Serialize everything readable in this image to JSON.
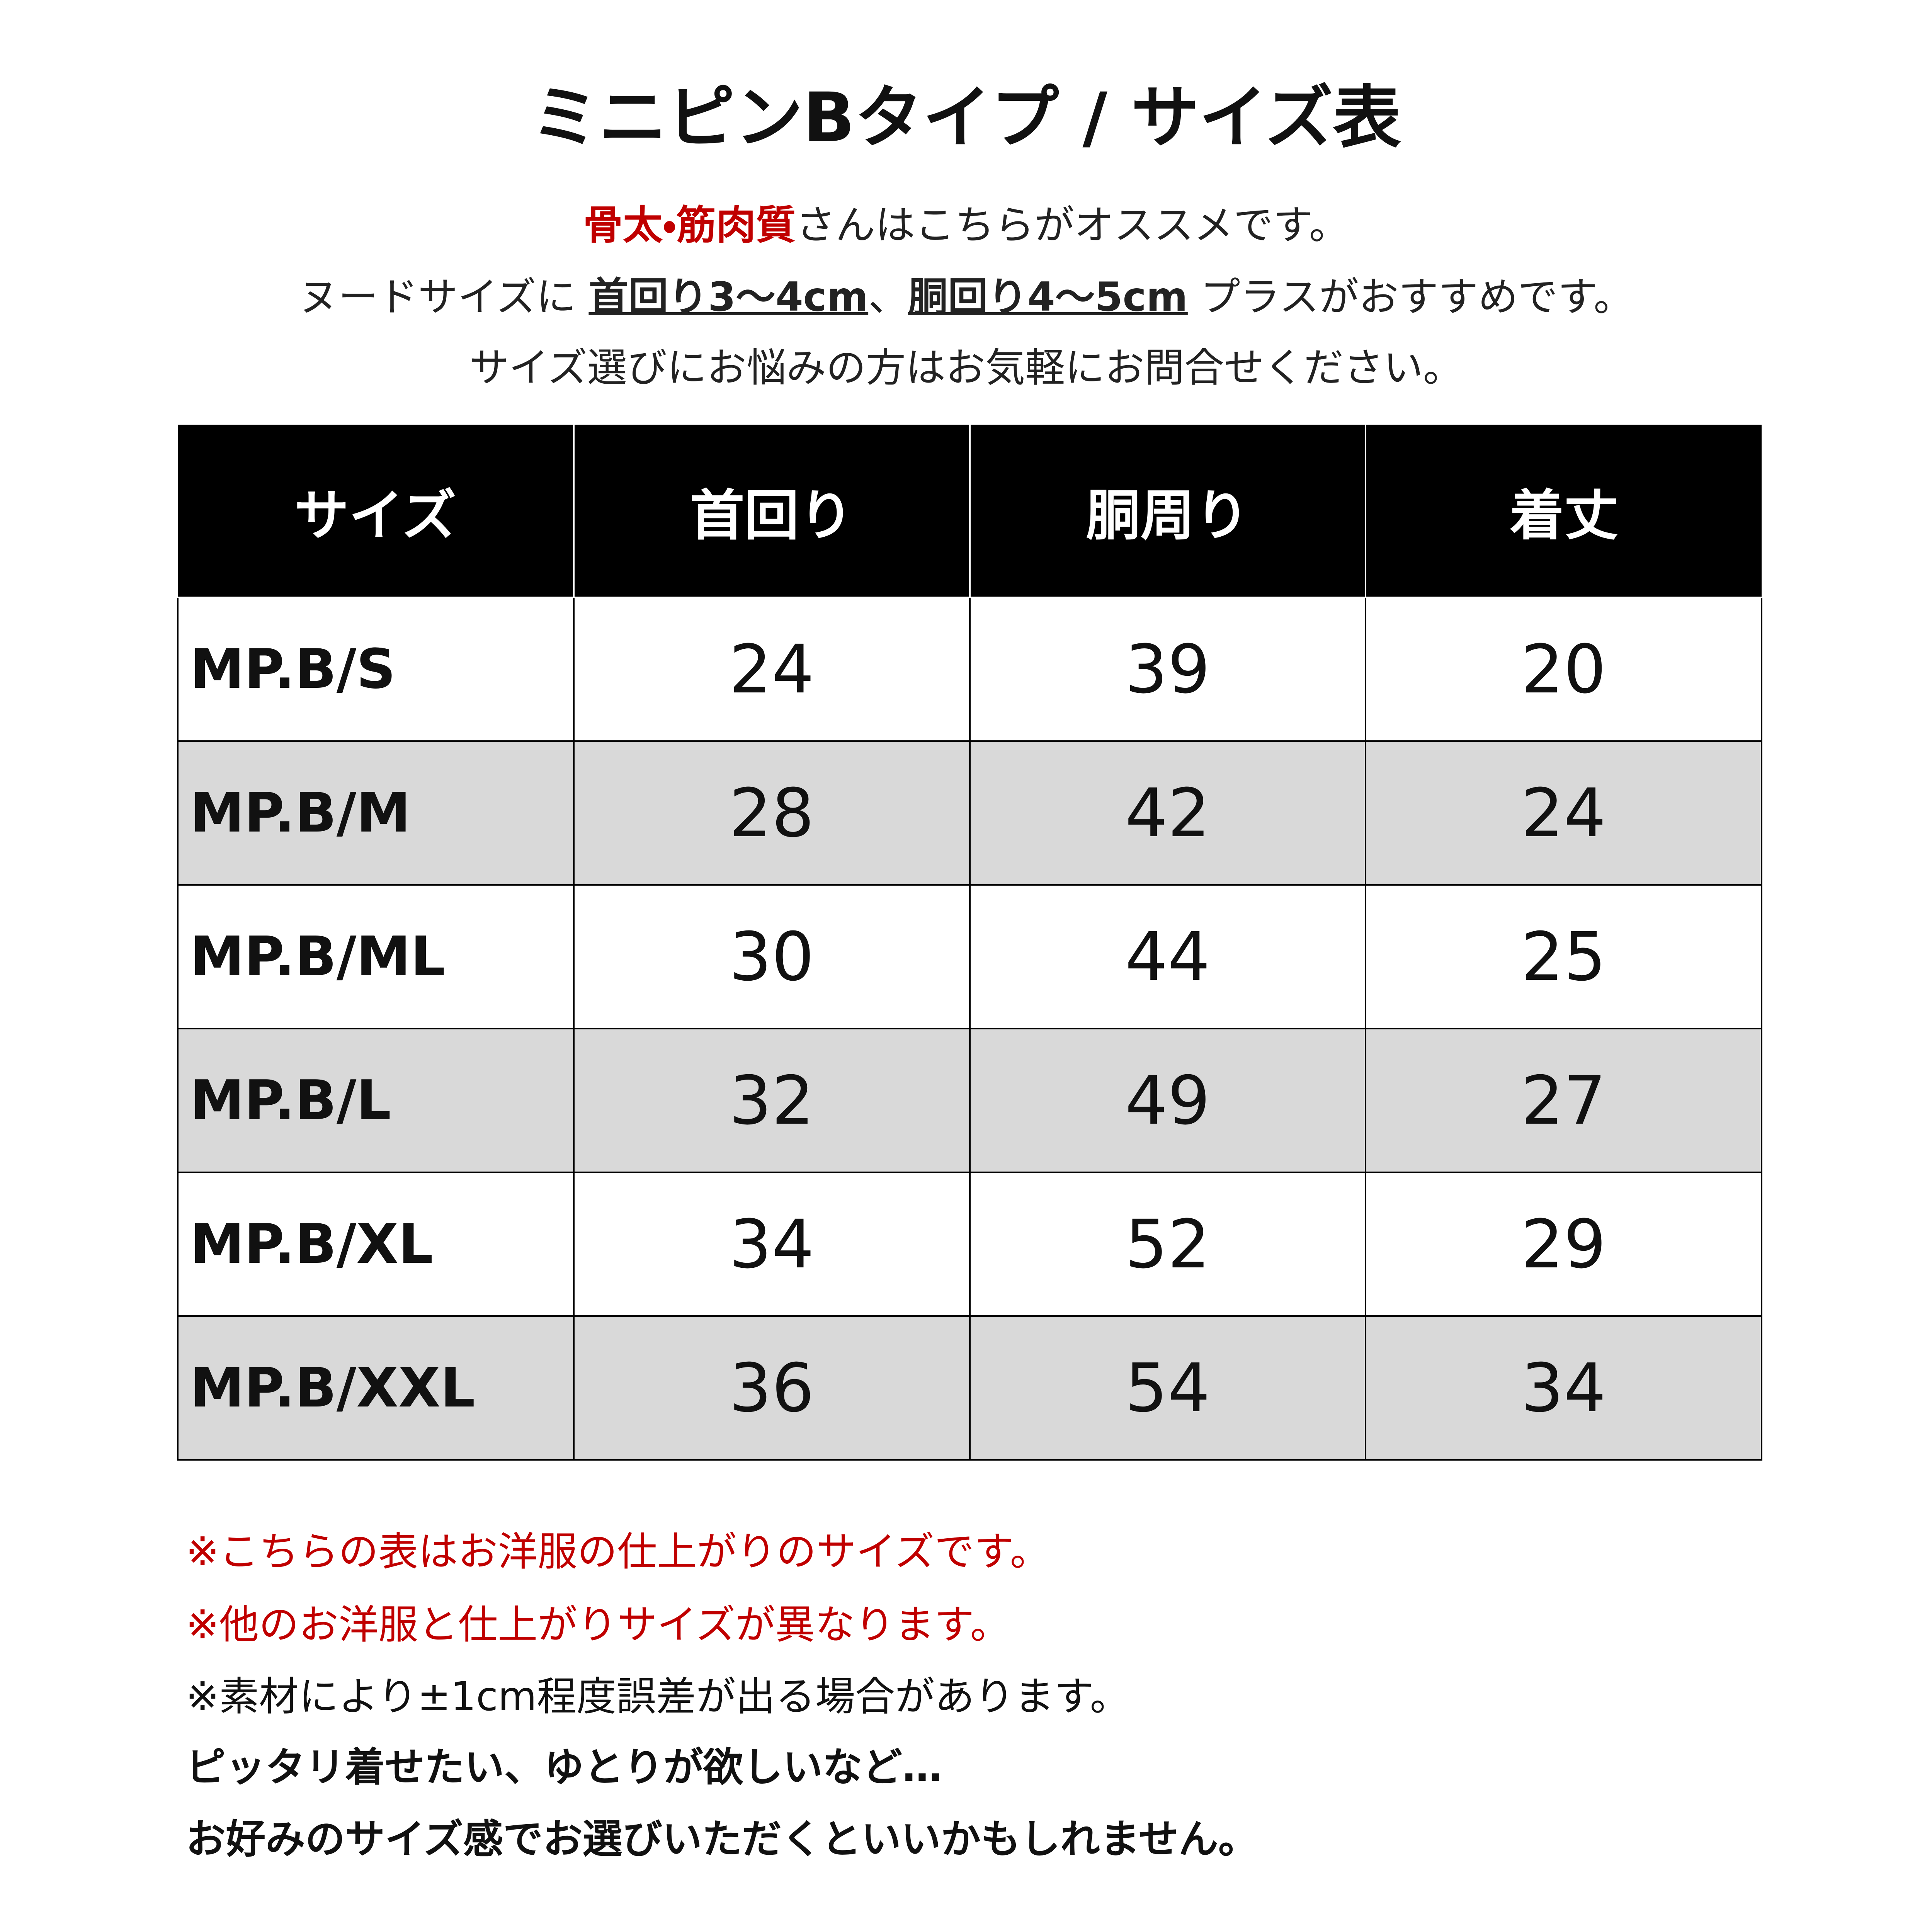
{
  "title": "ミニピンBタイプ / サイズ表",
  "intro": [
    [
      "骨太・筋肉質",
      "さんはこちらがオススメです。"
    ],
    [
      "ヌードサイズに ",
      "首回り3〜4cm",
      "、",
      "胴回り4〜5cm",
      " プラスがおすすめです。"
    ],
    [
      "サイズ選びにお悩みの方はお気軽にお問合せください。"
    ]
  ],
  "table": {
    "header": [
      "サイズ",
      "首回り",
      "胴周り",
      "着丈"
    ],
    "rows": [
      [
        "MP.B/S",
        24,
        39,
        20
      ],
      [
        "MP.B/M",
        28,
        42,
        24
      ],
      [
        "MP.B/ML",
        30,
        44,
        25
      ],
      [
        "MP.B/L",
        32,
        49,
        27
      ],
      [
        "MP.B/XL",
        34,
        52,
        29
      ],
      [
        "MP.B/XXL",
        36,
        54,
        34
      ]
    ]
  },
  "notes": [
    "※こちらの表はお洋服の仕上がりのサイズです。",
    "※他のお洋服と仕上がりサイズが異なります。",
    "※素材により±1cm程度誤差が出る場合があります。",
    "ピッタリ着せたい、ゆとりが欲しいなど…",
    "お好みのサイズ感でお選びいただくといいかもしれません。"
  ]
}
